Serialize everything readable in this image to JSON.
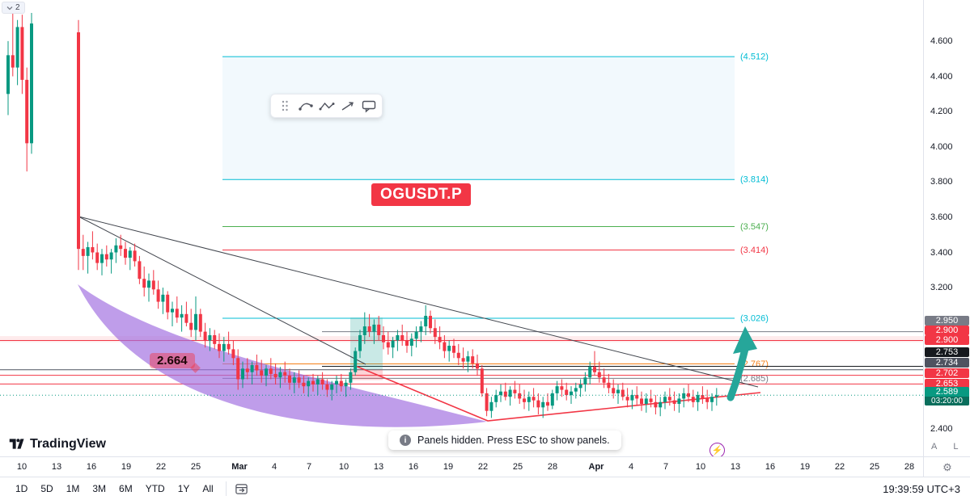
{
  "app_title": "TradingView",
  "legend": {
    "collapsed_count": "2"
  },
  "ticker_badge": "OGUSDT.P",
  "price_label_callout": "2.664",
  "drawing_toolbar": {
    "tools": [
      "drag-handle",
      "curve-tool",
      "polyline-tool",
      "arrow-tool",
      "callout-tool"
    ]
  },
  "toast": {
    "info_text": "Panels hidden. Press ESC to show panels."
  },
  "logo_text": "TradingView",
  "price_axis": {
    "ticks": [
      "4.600",
      "4.400",
      "4.200",
      "4.000",
      "3.800",
      "3.600",
      "3.400",
      "3.200",
      "2.400"
    ],
    "badges": [
      {
        "text": "2.950",
        "bg": "#787b86"
      },
      {
        "text": "2.900",
        "bg": "#f23645"
      },
      {
        "text": "2.900",
        "bg": "#f23645"
      },
      {
        "text": "2.753",
        "bg": "#16191e"
      },
      {
        "text": "2.734",
        "bg": "#4f5360"
      },
      {
        "text": "2.702",
        "bg": "#f23645"
      },
      {
        "text": "2.653",
        "bg": "#f23645"
      },
      {
        "text": "2.589",
        "bg": "#089981",
        "countdown": "03:20:00",
        "countdown_bg": "#0a6e5c"
      }
    ],
    "buttons": [
      "A",
      "L"
    ]
  },
  "bottom_bar": {
    "ranges": [
      "1D",
      "5D",
      "1M",
      "3M",
      "6M",
      "YTD",
      "1Y",
      "All"
    ],
    "clock": "19:39:59 UTC+3"
  },
  "colors": {
    "up": "#089981",
    "down": "#f23645",
    "accent_red": "#f23645",
    "teal_arrow": "#26a69a",
    "purple": "#a06ee0",
    "trendline": "#42464e",
    "wedge_red": "#f23645",
    "band_blue": "rgba(41,152,213,0.06)",
    "zone_red": "rgba(242,54,69,0.10)",
    "teal_box": "rgba(38,166,154,0.25)",
    "red_box": "rgba(242,54,69,0.22)"
  },
  "chart_data": {
    "type": "candlestick",
    "symbol": "OGUSDT.P",
    "ylim": [
      2.35,
      4.8
    ],
    "last_price": 2.589,
    "levels": [
      {
        "value": 4.512,
        "label": "(4.512)",
        "color": "#00bcd4"
      },
      {
        "value": 3.814,
        "label": "(3.814)",
        "color": "#00bcd4"
      },
      {
        "value": 3.547,
        "label": "(3.547)",
        "color": "#4caf50"
      },
      {
        "value": 3.414,
        "label": "(3.414)",
        "color": "#f23645"
      },
      {
        "value": 3.026,
        "label": "(3.026)",
        "color": "#00bcd4"
      },
      {
        "value": 2.767,
        "label": "(2.767)",
        "color": "#f57f17"
      },
      {
        "value": 2.685,
        "label": "(2.685)",
        "color": "#787b86"
      }
    ],
    "hlines": [
      {
        "price": 2.95,
        "color": "#787b86",
        "span": "right"
      },
      {
        "price": 2.9,
        "color": "#f23645",
        "span": "full"
      },
      {
        "price": 2.753,
        "color": "#16191e",
        "span": "right"
      },
      {
        "price": 2.734,
        "color": "#4f5360",
        "span": "full"
      },
      {
        "price": 2.702,
        "color": "#f23645",
        "span": "full"
      },
      {
        "price": 2.653,
        "color": "#f23645",
        "span": "full"
      }
    ],
    "time_axis": [
      [
        "10",
        27
      ],
      [
        "13",
        70
      ],
      [
        "16",
        113
      ],
      [
        "19",
        156
      ],
      [
        "22",
        199
      ],
      [
        "25",
        242
      ],
      [
        "Mar",
        296
      ],
      [
        "4",
        339
      ],
      [
        "7",
        382
      ],
      [
        "10",
        425
      ],
      [
        "13",
        468
      ],
      [
        "16",
        511
      ],
      [
        "19",
        554
      ],
      [
        "22",
        597
      ],
      [
        "25",
        640
      ],
      [
        "28",
        683
      ],
      [
        "Apr",
        737
      ],
      [
        "4",
        780
      ],
      [
        "7",
        823
      ],
      [
        "10",
        866
      ],
      [
        "13",
        909
      ],
      [
        "16",
        952
      ],
      [
        "19",
        995
      ],
      [
        "22",
        1038
      ],
      [
        "25",
        1081
      ],
      [
        "28",
        1124
      ]
    ],
    "candles": [
      [
        4.3,
        4.6,
        4.18,
        4.52
      ],
      [
        4.52,
        4.78,
        4.4,
        4.45
      ],
      [
        4.45,
        4.72,
        4.35,
        4.68
      ],
      [
        4.68,
        4.75,
        4.3,
        4.38
      ],
      [
        4.38,
        4.45,
        3.86,
        4.02
      ],
      [
        4.02,
        4.76,
        3.96,
        4.7
      ],
      null,
      null,
      null,
      null,
      null,
      null,
      null,
      null,
      null,
      [
        4.65,
        4.72,
        3.3,
        3.42
      ],
      [
        3.42,
        3.5,
        3.3,
        3.38
      ],
      [
        3.38,
        3.46,
        3.28,
        3.43
      ],
      [
        3.43,
        3.52,
        3.36,
        3.4
      ],
      [
        3.4,
        3.45,
        3.3,
        3.34
      ],
      [
        3.34,
        3.42,
        3.27,
        3.39
      ],
      [
        3.39,
        3.44,
        3.32,
        3.36
      ],
      [
        3.36,
        3.42,
        3.28,
        3.4
      ],
      [
        3.4,
        3.48,
        3.34,
        3.44
      ],
      [
        3.44,
        3.5,
        3.38,
        3.42
      ],
      [
        3.42,
        3.46,
        3.33,
        3.37
      ],
      [
        3.37,
        3.43,
        3.3,
        3.41
      ],
      [
        3.41,
        3.45,
        3.32,
        3.35
      ],
      [
        3.35,
        3.38,
        3.22,
        3.25
      ],
      [
        3.25,
        3.32,
        3.15,
        3.2
      ],
      [
        3.2,
        3.28,
        3.12,
        3.24
      ],
      [
        3.24,
        3.3,
        3.16,
        3.19
      ],
      [
        3.19,
        3.24,
        3.08,
        3.12
      ],
      [
        3.12,
        3.2,
        3.05,
        3.16
      ],
      [
        3.16,
        3.18,
        3.02,
        3.06
      ],
      [
        3.06,
        3.12,
        2.98,
        3.08
      ],
      [
        3.08,
        3.15,
        3.0,
        3.03
      ],
      [
        3.03,
        3.1,
        2.95,
        3.05
      ],
      [
        3.05,
        3.12,
        2.98,
        3.0
      ],
      [
        3.0,
        3.08,
        2.92,
        2.96
      ],
      [
        2.96,
        3.15,
        2.9,
        3.05
      ],
      [
        3.05,
        3.08,
        2.92,
        2.95
      ],
      [
        2.95,
        3.0,
        2.86,
        2.9
      ],
      [
        2.9,
        2.97,
        2.84,
        2.93
      ],
      [
        2.93,
        2.96,
        2.85,
        2.88
      ],
      [
        2.88,
        2.94,
        2.8,
        2.84
      ],
      [
        2.84,
        2.92,
        2.78,
        2.88
      ],
      [
        2.88,
        2.95,
        2.82,
        2.85
      ],
      [
        2.85,
        2.9,
        2.76,
        2.8
      ],
      [
        2.8,
        2.85,
        2.62,
        2.68
      ],
      [
        2.68,
        2.78,
        2.63,
        2.74
      ],
      [
        2.74,
        2.8,
        2.68,
        2.72
      ],
      [
        2.72,
        2.78,
        2.65,
        2.76
      ],
      [
        2.76,
        2.82,
        2.7,
        2.73
      ],
      [
        2.73,
        2.79,
        2.66,
        2.7
      ],
      [
        2.7,
        2.76,
        2.64,
        2.74
      ],
      [
        2.74,
        2.8,
        2.68,
        2.71
      ],
      [
        2.71,
        2.77,
        2.65,
        2.69
      ],
      [
        2.69,
        2.75,
        2.63,
        2.72
      ],
      [
        2.72,
        2.78,
        2.66,
        2.7
      ],
      [
        2.7,
        2.74,
        2.62,
        2.66
      ],
      [
        2.66,
        2.72,
        2.6,
        2.69
      ],
      [
        2.69,
        2.73,
        2.63,
        2.66
      ],
      [
        2.66,
        2.7,
        2.6,
        2.64
      ],
      [
        2.64,
        2.69,
        2.58,
        2.67
      ],
      [
        2.67,
        2.71,
        2.61,
        2.65
      ],
      [
        2.65,
        2.7,
        2.59,
        2.68
      ],
      [
        2.68,
        2.72,
        2.62,
        2.65
      ],
      [
        2.65,
        2.68,
        2.58,
        2.62
      ],
      [
        2.62,
        2.67,
        2.56,
        2.65
      ],
      [
        2.65,
        2.7,
        2.6,
        2.67
      ],
      [
        2.67,
        2.71,
        2.61,
        2.64
      ],
      [
        2.64,
        2.68,
        2.58,
        2.66
      ],
      [
        2.66,
        2.74,
        2.62,
        2.72
      ],
      [
        2.72,
        2.86,
        2.7,
        2.84
      ],
      [
        2.84,
        2.96,
        2.8,
        2.93
      ],
      [
        2.93,
        3.06,
        2.88,
        2.98
      ],
      [
        2.98,
        3.05,
        2.92,
        2.95
      ],
      [
        2.95,
        3.02,
        2.88,
        2.99
      ],
      [
        2.99,
        3.04,
        2.9,
        2.93
      ],
      [
        2.93,
        2.98,
        2.85,
        2.89
      ],
      [
        2.89,
        2.95,
        2.82,
        2.86
      ],
      [
        2.86,
        2.92,
        2.8,
        2.9
      ],
      [
        2.9,
        2.96,
        2.84,
        2.93
      ],
      [
        2.93,
        2.99,
        2.87,
        2.9
      ],
      [
        2.9,
        2.95,
        2.83,
        2.87
      ],
      [
        2.87,
        2.94,
        2.81,
        2.91
      ],
      [
        2.91,
        2.98,
        2.86,
        2.95
      ],
      [
        2.95,
        3.01,
        2.89,
        2.98
      ],
      [
        2.98,
        3.1,
        2.93,
        3.04
      ],
      [
        3.04,
        3.07,
        2.94,
        2.97
      ],
      [
        2.97,
        3.02,
        2.88,
        2.92
      ],
      [
        2.92,
        2.98,
        2.85,
        2.89
      ],
      [
        2.89,
        2.93,
        2.8,
        2.84
      ],
      [
        2.84,
        2.9,
        2.78,
        2.87
      ],
      [
        2.87,
        2.91,
        2.8,
        2.83
      ],
      [
        2.83,
        2.88,
        2.76,
        2.8
      ],
      [
        2.8,
        2.86,
        2.74,
        2.78
      ],
      [
        2.78,
        2.84,
        2.72,
        2.81
      ],
      [
        2.81,
        2.85,
        2.74,
        2.77
      ],
      [
        2.77,
        2.82,
        2.7,
        2.74
      ],
      [
        2.74,
        2.76,
        2.58,
        2.6
      ],
      [
        2.6,
        2.63,
        2.47,
        2.5
      ],
      [
        2.5,
        2.58,
        2.46,
        2.55
      ],
      [
        2.55,
        2.62,
        2.52,
        2.59
      ],
      [
        2.59,
        2.65,
        2.55,
        2.61
      ],
      [
        2.61,
        2.66,
        2.56,
        2.58
      ],
      [
        2.58,
        2.64,
        2.53,
        2.62
      ],
      [
        2.62,
        2.67,
        2.57,
        2.6
      ],
      [
        2.6,
        2.65,
        2.54,
        2.57
      ],
      [
        2.57,
        2.62,
        2.51,
        2.55
      ],
      [
        2.55,
        2.61,
        2.5,
        2.58
      ],
      [
        2.58,
        2.63,
        2.52,
        2.56
      ],
      [
        2.56,
        2.6,
        2.48,
        2.52
      ],
      [
        2.52,
        2.58,
        2.46,
        2.55
      ],
      [
        2.55,
        2.6,
        2.5,
        2.53
      ],
      [
        2.53,
        2.62,
        2.51,
        2.6
      ],
      [
        2.6,
        2.67,
        2.56,
        2.64
      ],
      [
        2.64,
        2.68,
        2.58,
        2.62
      ],
      [
        2.62,
        2.66,
        2.56,
        2.59
      ],
      [
        2.59,
        2.64,
        2.54,
        2.61
      ],
      [
        2.61,
        2.66,
        2.57,
        2.63
      ],
      [
        2.63,
        2.68,
        2.58,
        2.65
      ],
      [
        2.65,
        2.72,
        2.61,
        2.69
      ],
      [
        2.69,
        2.78,
        2.65,
        2.75
      ],
      [
        2.75,
        2.84,
        2.7,
        2.72
      ],
      [
        2.72,
        2.78,
        2.66,
        2.69
      ],
      [
        2.69,
        2.74,
        2.63,
        2.66
      ],
      [
        2.66,
        2.71,
        2.6,
        2.63
      ],
      [
        2.63,
        2.68,
        2.57,
        2.6
      ],
      [
        2.6,
        2.65,
        2.54,
        2.62
      ],
      [
        2.62,
        2.66,
        2.56,
        2.58
      ],
      [
        2.58,
        2.63,
        2.52,
        2.56
      ],
      [
        2.56,
        2.62,
        2.51,
        2.59
      ],
      [
        2.59,
        2.64,
        2.53,
        2.57
      ],
      [
        2.57,
        2.61,
        2.5,
        2.54
      ],
      [
        2.54,
        2.6,
        2.49,
        2.57
      ],
      [
        2.57,
        2.62,
        2.52,
        2.55
      ],
      [
        2.55,
        2.59,
        2.48,
        2.52
      ],
      [
        2.52,
        2.58,
        2.47,
        2.55
      ],
      [
        2.55,
        2.61,
        2.51,
        2.58
      ],
      [
        2.58,
        2.63,
        2.53,
        2.56
      ],
      [
        2.56,
        2.61,
        2.5,
        2.54
      ],
      [
        2.54,
        2.6,
        2.49,
        2.57
      ],
      [
        2.57,
        2.63,
        2.52,
        2.6
      ],
      [
        2.6,
        2.65,
        2.55,
        2.58
      ],
      [
        2.58,
        2.62,
        2.52,
        2.55
      ],
      [
        2.55,
        2.61,
        2.5,
        2.59
      ],
      [
        2.59,
        2.64,
        2.54,
        2.57
      ],
      [
        2.57,
        2.62,
        2.51,
        2.55
      ],
      [
        2.55,
        2.6,
        2.5,
        2.58
      ],
      [
        2.58,
        2.63,
        2.53,
        2.589
      ]
    ]
  }
}
